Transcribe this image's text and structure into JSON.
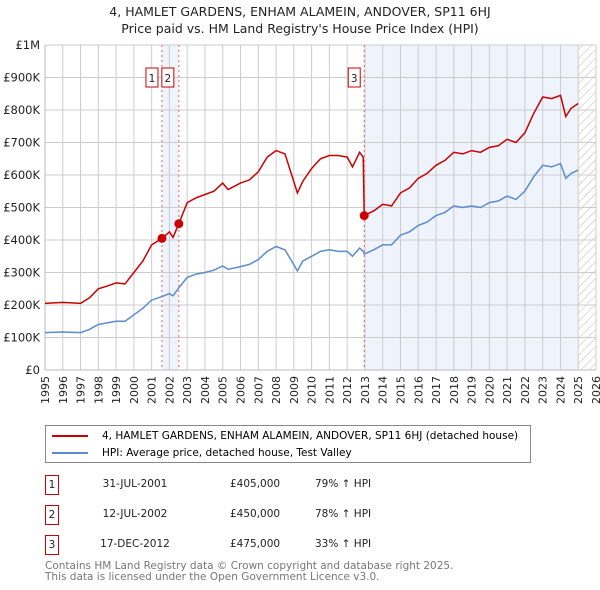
{
  "chart_data": {
    "type": "line",
    "title": "4, HAMLET GARDENS, ENHAM ALAMEIN, ANDOVER, SP11 6HJ",
    "subtitle": "Price paid vs. HM Land Registry's House Price Index (HPI)",
    "xlim": [
      1995,
      2026
    ],
    "ylim": [
      0,
      1000000
    ],
    "x_ticks": [
      "1995",
      "1996",
      "1997",
      "1998",
      "1999",
      "2000",
      "2001",
      "2002",
      "2003",
      "2004",
      "2005",
      "2006",
      "2007",
      "2008",
      "2009",
      "2010",
      "2011",
      "2012",
      "2013",
      "2014",
      "2015",
      "2016",
      "2017",
      "2018",
      "2019",
      "2020",
      "2021",
      "2022",
      "2023",
      "2024",
      "2025",
      "2026"
    ],
    "y_ticks": [
      {
        "v": 0,
        "label": "£0"
      },
      {
        "v": 100000,
        "label": "£100K"
      },
      {
        "v": 200000,
        "label": "£200K"
      },
      {
        "v": 300000,
        "label": "£300K"
      },
      {
        "v": 400000,
        "label": "£400K"
      },
      {
        "v": 500000,
        "label": "£500K"
      },
      {
        "v": 600000,
        "label": "£600K"
      },
      {
        "v": 700000,
        "label": "£700K"
      },
      {
        "v": 800000,
        "label": "£800K"
      },
      {
        "v": 900000,
        "label": "£900K"
      },
      {
        "v": 1000000,
        "label": "£1M"
      }
    ],
    "grid": true,
    "x": [
      1995,
      1996,
      1997,
      1997.5,
      1998,
      1998.5,
      1999,
      1999.5,
      2000,
      2000.5,
      2001,
      2001.58,
      2002,
      2002.2,
      2002.53,
      2003,
      2003.5,
      2004,
      2004.5,
      2005,
      2005.3,
      2006,
      2006.5,
      2007,
      2007.5,
      2008,
      2008.5,
      2009.2,
      2009.5,
      2010,
      2010.5,
      2011,
      2011.5,
      2012,
      2012.3,
      2012.7,
      2012.9,
      2012.96,
      2013.5,
      2014,
      2014.5,
      2015,
      2015.5,
      2016,
      2016.5,
      2017,
      2017.5,
      2018,
      2018.5,
      2019,
      2019.5,
      2020,
      2020.5,
      2021,
      2021.5,
      2022,
      2022.5,
      2023,
      2023.5,
      2024,
      2024.3,
      2024.6,
      2025
    ],
    "series": [
      {
        "name": "4, HAMLET GARDENS, ENHAM ALAMEIN, ANDOVER, SP11 6HJ (detached house)",
        "color": "#cc0000",
        "values": [
          205000,
          208000,
          205000,
          222000,
          250000,
          258000,
          268000,
          265000,
          300000,
          335000,
          385000,
          405000,
          425000,
          408000,
          450000,
          515000,
          530000,
          540000,
          550000,
          575000,
          555000,
          575000,
          585000,
          610000,
          655000,
          675000,
          665000,
          545000,
          580000,
          620000,
          650000,
          660000,
          660000,
          655000,
          625000,
          670000,
          655000,
          475000,
          490000,
          510000,
          505000,
          545000,
          560000,
          590000,
          605000,
          630000,
          645000,
          670000,
          665000,
          675000,
          670000,
          685000,
          690000,
          710000,
          700000,
          730000,
          790000,
          840000,
          835000,
          845000,
          780000,
          805000,
          820000
        ]
      },
      {
        "name": "HPI: Average price, detached house, Test Valley",
        "color": "#5b8bd0",
        "values": [
          115000,
          117000,
          115000,
          125000,
          140000,
          145000,
          150000,
          150000,
          170000,
          190000,
          215000,
          226000,
          235000,
          228000,
          253000,
          285000,
          295000,
          300000,
          307000,
          320000,
          310000,
          318000,
          325000,
          340000,
          365000,
          380000,
          370000,
          305000,
          335000,
          350000,
          365000,
          370000,
          365000,
          365000,
          350000,
          375000,
          365000,
          357000,
          370000,
          385000,
          385000,
          415000,
          425000,
          445000,
          455000,
          475000,
          485000,
          505000,
          500000,
          505000,
          500000,
          515000,
          520000,
          535000,
          525000,
          550000,
          595000,
          630000,
          625000,
          635000,
          590000,
          605000,
          615000
        ]
      }
    ],
    "sales": [
      {
        "id": "1",
        "x": 2001.58,
        "value": 405000,
        "date": "31-JUL-2001",
        "price": "£405,000",
        "hpi": "79% ↑ HPI"
      },
      {
        "id": "2",
        "x": 2002.53,
        "value": 450000,
        "date": "12-JUL-2002",
        "price": "£450,000",
        "hpi": "78% ↑ HPI"
      },
      {
        "id": "3",
        "x": 2012.96,
        "value": 475000,
        "date": "17-DEC-2012",
        "price": "£475,000",
        "hpi": "33% ↑ HPI"
      }
    ],
    "shaded_ranges": [
      [
        2001.58,
        2002.53
      ],
      [
        2012.96,
        2025.0
      ]
    ],
    "hatched_range": [
      2025.0,
      2026
    ],
    "legend_position": "below"
  },
  "footer": {
    "line1": "Contains HM Land Registry data © Crown copyright and database right 2025.",
    "line2": "This data is licensed under the Open Government Licence v3.0."
  }
}
